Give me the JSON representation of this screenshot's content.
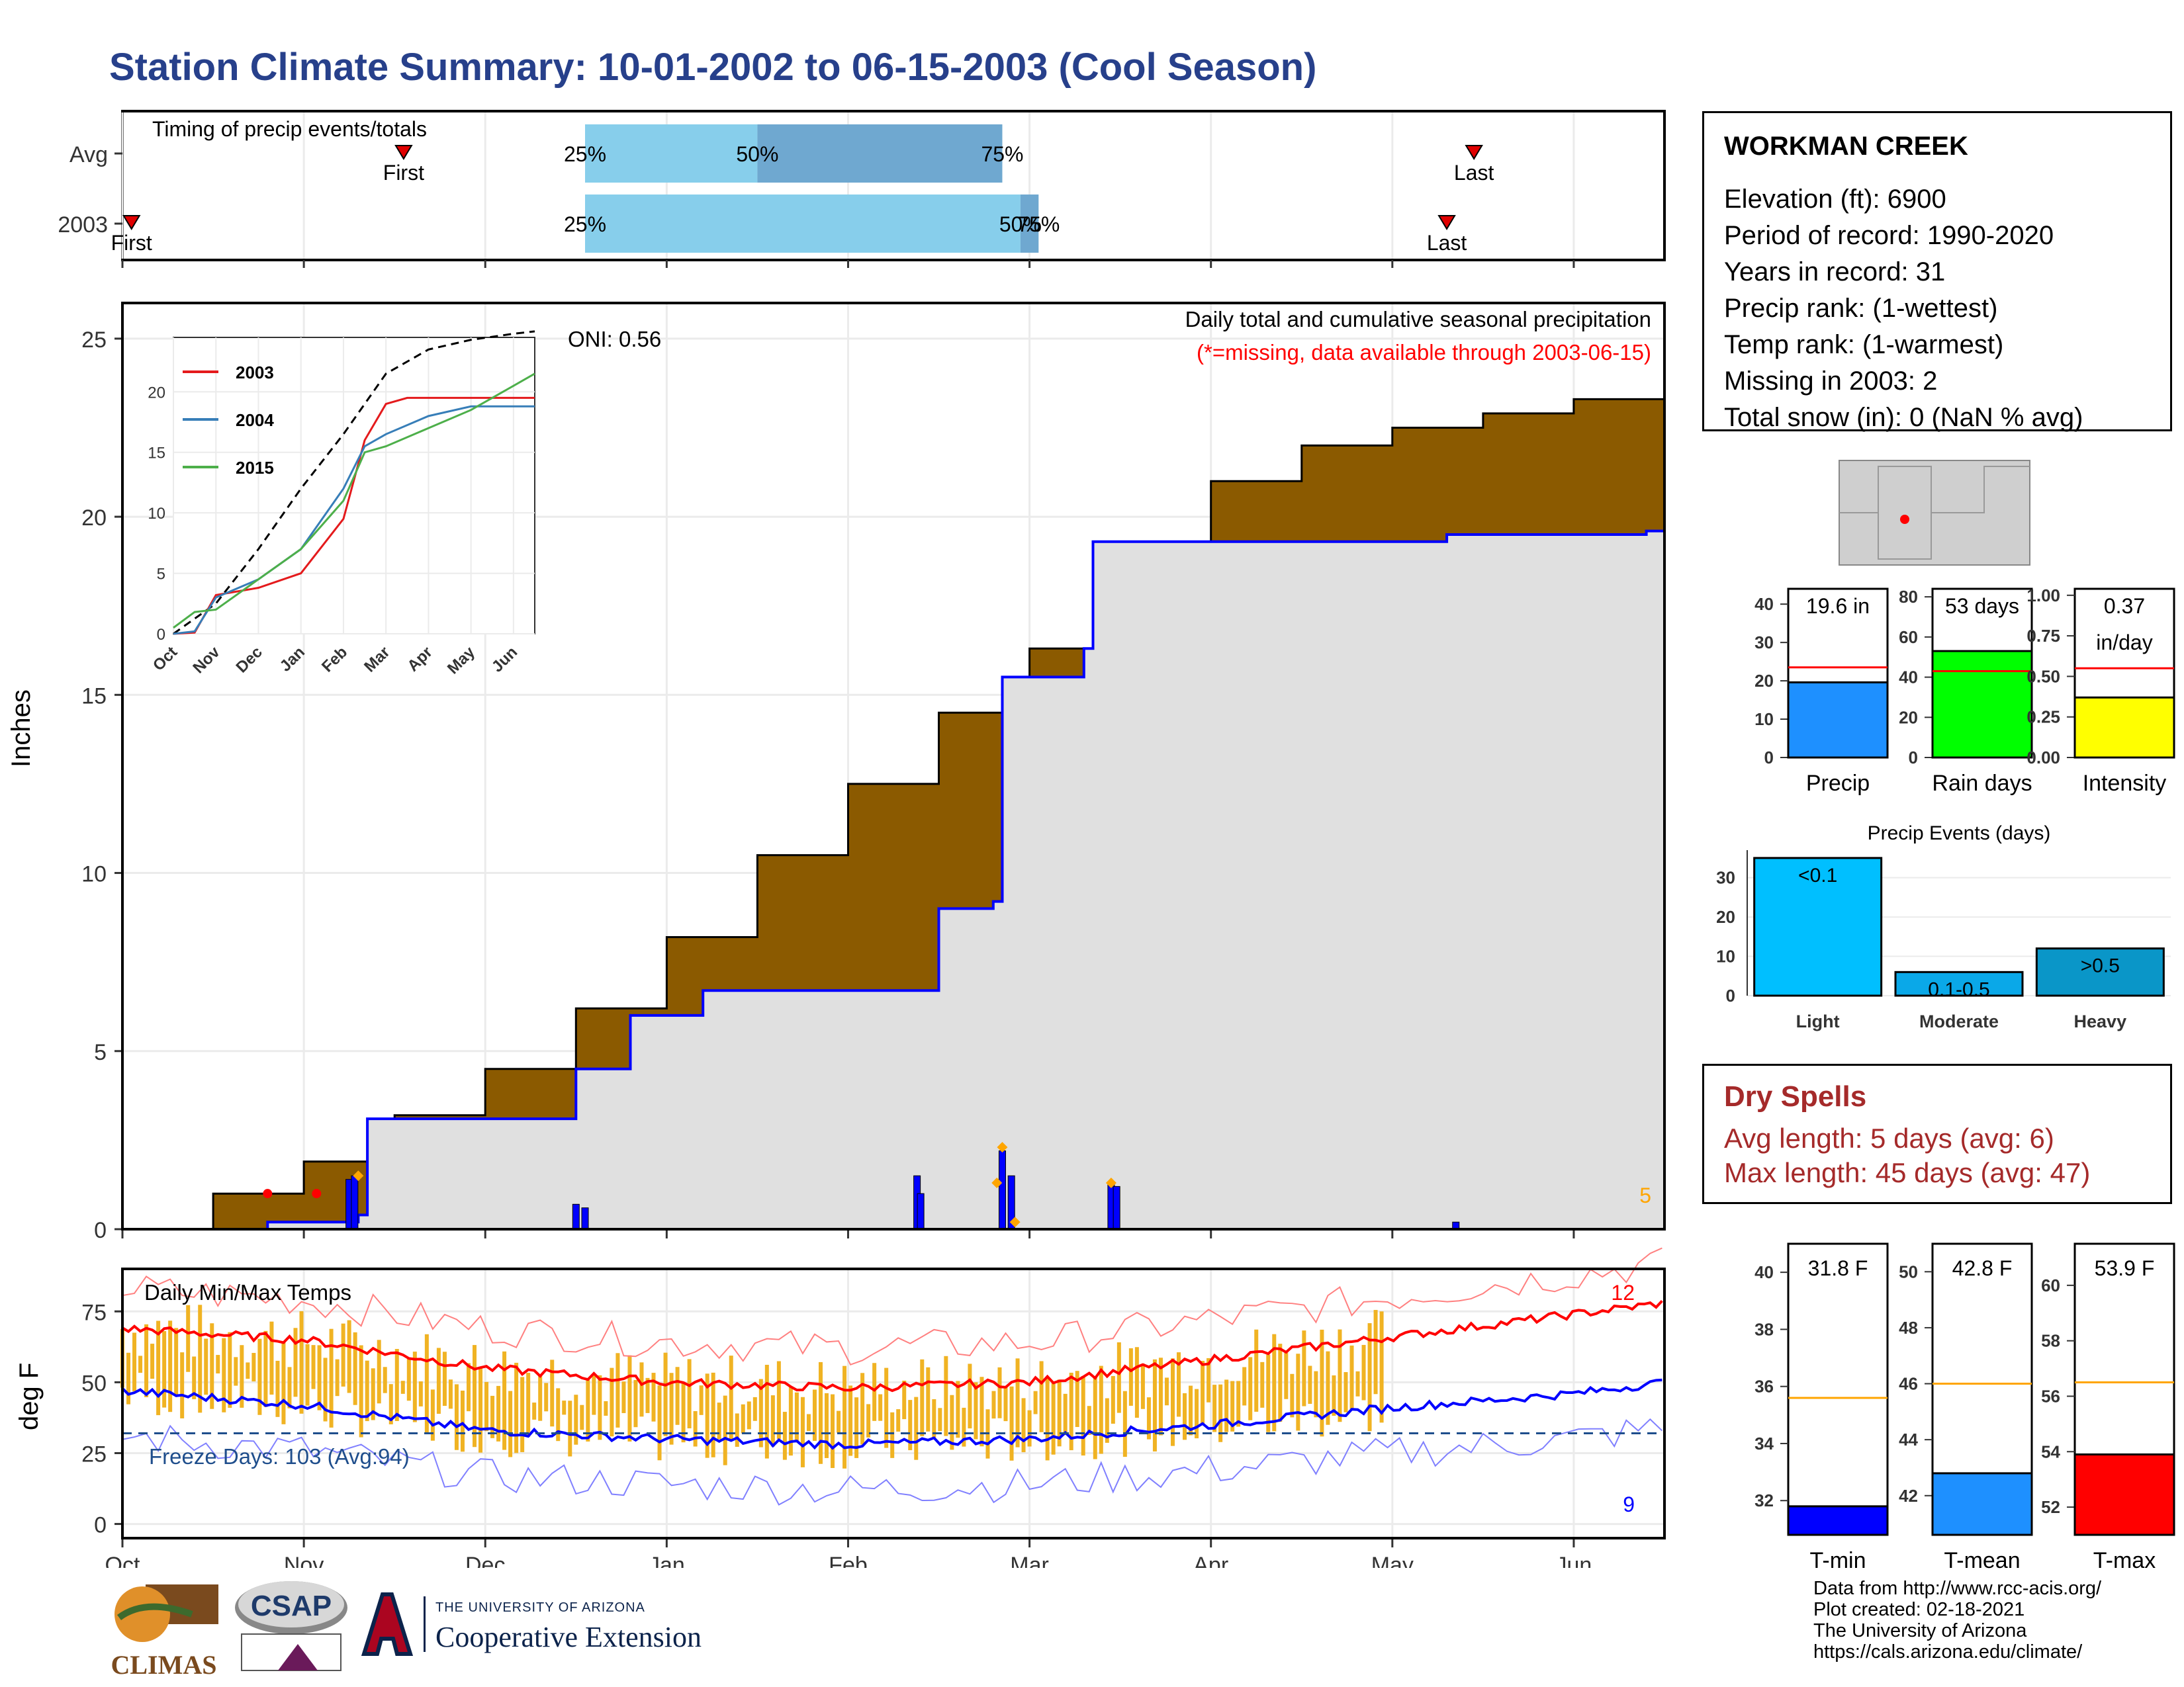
{
  "title": "Station Climate Summary: 10-01-2002 to 06-15-2003 (Cool Season)",
  "timing": {
    "label": "Timing of precip events/totals",
    "rows": [
      "Avg",
      "2003"
    ],
    "first_label": "First",
    "last_label": "Last",
    "avg_first_month": 1.55,
    "avg_last_month": 7.45,
    "yr_first_month": 0.05,
    "yr_last_month": 7.3,
    "avg_pct": {
      "p25": 2.55,
      "p50": 3.5,
      "p75": 4.85
    },
    "yr_pct": {
      "p25": 2.55,
      "p50": 4.95,
      "p75": 5.05
    },
    "pct_labels": [
      "25%",
      "50%",
      "75%"
    ]
  },
  "station": {
    "name": "WORKMAN CREEK",
    "elevation": "Elevation (ft): 6900",
    "period": "Period of record: 1990-2020",
    "years": "Years in record: 31",
    "precip_rank": "Precip rank:  (1-wettest)",
    "temp_rank": "Temp rank:  (1-warmest)",
    "missing": "Missing in 2003: 2",
    "snow": "Total snow (in): 0 (NaN % avg)"
  },
  "precip_panel": {
    "title": "Daily total and cumulative seasonal precipitation",
    "missing_note": "(*=missing, data available through 2003-06-15)",
    "oni": "ONI: 0.56",
    "ylabel": "Inches",
    "corner_count": "5",
    "avg_color": "#8b5a00",
    "obs_color": "#0000ff"
  },
  "temp_panel": {
    "title": "Daily Min/Max Temps",
    "ylabel": "deg F",
    "freeze": "Freeze Days: 103 (Avg:94)",
    "max_count": "12",
    "min_count": "9"
  },
  "months": [
    "Oct",
    "Nov",
    "Dec",
    "Jan",
    "Feb",
    "Mar",
    "Apr",
    "May",
    "Jun"
  ],
  "inset": {
    "months": [
      "Oct",
      "Nov",
      "Dec",
      "Jan",
      "Feb",
      "Mar",
      "Apr",
      "May",
      "Jun"
    ],
    "legend": [
      {
        "name": "2003",
        "color": "#e41a1c"
      },
      {
        "name": "2004",
        "color": "#377eb8"
      },
      {
        "name": "2015",
        "color": "#4daf4a"
      }
    ]
  },
  "mini_bars": [
    {
      "label": "Precip",
      "value": 19.6,
      "avg": 23.5,
      "ymax": 44,
      "ticks": [
        "0",
        "10",
        "20",
        "30",
        "40"
      ],
      "tickvals": [
        0,
        10,
        20,
        30,
        40
      ],
      "text1": "19.6 in",
      "text2": "",
      "color": "#1e90ff"
    },
    {
      "label": "Rain days",
      "value": 53,
      "avg": 43,
      "ymax": 84,
      "ticks": [
        "0",
        "20",
        "40",
        "60",
        "80"
      ],
      "tickvals": [
        0,
        20,
        40,
        60,
        80
      ],
      "text1": "53 days",
      "text2": "",
      "color": "#00ff00"
    },
    {
      "label": "Intensity",
      "value": 0.37,
      "avg": 0.55,
      "ymax": 1.04,
      "ticks": [
        "0.00",
        "0.25",
        "0.50",
        "0.75",
        "1.00"
      ],
      "tickvals": [
        0,
        0.25,
        0.5,
        0.75,
        1.0
      ],
      "text1": "0.37",
      "text2": "in/day",
      "color": "#ffff00"
    }
  ],
  "events": {
    "title": "Precip Events (days)",
    "bars": [
      {
        "label": "Light",
        "value": 35,
        "text": "<0.1",
        "color": "#00bfff"
      },
      {
        "label": "Moderate",
        "value": 6,
        "text": "0.1-0.5",
        "color": "#0aa8e8"
      },
      {
        "label": "Heavy",
        "value": 12,
        "text": ">0.5",
        "color": "#0a96c8"
      }
    ],
    "ticks": [
      "0",
      "10",
      "20",
      "30"
    ],
    "tickvals": [
      0,
      10,
      20,
      30
    ],
    "ymax": 37
  },
  "dry_spells": {
    "title": "Dry Spells",
    "avg": "Avg length: 5 days (avg: 6)",
    "max": "Max length: 45 days (avg: 47)",
    "color": "#a52a2a"
  },
  "temp_bars": [
    {
      "label": "T-min",
      "value": 31.8,
      "avg": 35.6,
      "ymin": 30.8,
      "ymax": 41,
      "ticks": [
        "32",
        "34",
        "36",
        "38",
        "40"
      ],
      "tickvals": [
        32,
        34,
        36,
        38,
        40
      ],
      "text": "31.8 F",
      "color": "#0000ff"
    },
    {
      "label": "T-mean",
      "value": 42.8,
      "avg": 46.0,
      "ymin": 40.6,
      "ymax": 51,
      "ticks": [
        "42",
        "44",
        "46",
        "48",
        "50"
      ],
      "tickvals": [
        42,
        44,
        46,
        48,
        50
      ],
      "text": "42.8 F",
      "color": "#1e90ff"
    },
    {
      "label": "T-max",
      "value": 53.9,
      "avg": 56.5,
      "ymin": 51.0,
      "ymax": 61.5,
      "ticks": [
        "52",
        "54",
        "56",
        "58",
        "60"
      ],
      "tickvals": [
        52,
        54,
        56,
        58,
        60
      ],
      "text": "53.9 F",
      "color": "#ff0000"
    }
  ],
  "footer": {
    "line1": "Data from http://www.rcc-acis.org/",
    "line2": "Plot created: 02-18-2021",
    "line3": "The University of Arizona",
    "line4": "https://cals.arizona.edu/climate/"
  },
  "logos": {
    "climas": "CLIMAS",
    "csap": "CSAP",
    "ua_small": "THE UNIVERSITY OF ARIZONA",
    "ua_big": "Cooperative Extension"
  },
  "chart_data": [
    {
      "type": "area",
      "title": "Daily total and cumulative seasonal precipitation",
      "ylabel": "Inches",
      "ylim": [
        0,
        26
      ],
      "x_unit": "months since Oct 1",
      "avg_cumulative": {
        "x": [
          0,
          0.5,
          1,
          1.5,
          2,
          2.5,
          3,
          3.5,
          4,
          4.5,
          5,
          5.5,
          6,
          6.5,
          7,
          7.5,
          8,
          8.5
        ],
        "y": [
          0,
          1.0,
          1.9,
          3.2,
          4.5,
          6.2,
          8.2,
          10.5,
          12.5,
          14.5,
          16.3,
          18.5,
          21.0,
          22.0,
          22.5,
          22.9,
          23.3,
          23.6
        ]
      },
      "obs_cumulative": {
        "x": [
          0,
          0.8,
          1.3,
          1.35,
          2.0,
          2.5,
          2.8,
          3.2,
          3.5,
          4.4,
          4.5,
          4.8,
          4.85,
          5.3,
          5.35,
          5.5,
          7.0,
          7.3,
          8.4
        ],
        "y": [
          0,
          0.2,
          0.4,
          3.1,
          3.1,
          4.5,
          6.0,
          6.7,
          6.7,
          6.7,
          9.0,
          9.2,
          15.5,
          16.3,
          19.3,
          19.3,
          19.3,
          19.5,
          19.6
        ]
      },
      "daily_bars": [
        {
          "x": 1.25,
          "y": 1.4
        },
        {
          "x": 1.28,
          "y": 1.5
        },
        {
          "x": 2.5,
          "y": 0.7
        },
        {
          "x": 2.55,
          "y": 0.6
        },
        {
          "x": 4.38,
          "y": 1.5
        },
        {
          "x": 4.4,
          "y": 1.0
        },
        {
          "x": 4.85,
          "y": 2.2
        },
        {
          "x": 4.9,
          "y": 1.5
        },
        {
          "x": 5.45,
          "y": 1.3
        },
        {
          "x": 5.48,
          "y": 1.2
        },
        {
          "x": 7.35,
          "y": 0.2
        }
      ]
    },
    {
      "type": "line",
      "title": "Daily Min/Max Temps",
      "ylabel": "deg F",
      "ylim": [
        -5,
        90
      ],
      "avg_max": {
        "x": [
          0,
          1,
          2,
          3,
          4,
          5,
          6,
          7,
          8,
          8.5
        ],
        "y": [
          69,
          65,
          55,
          50,
          48,
          50,
          58,
          66,
          74,
          78
        ]
      },
      "avg_min": {
        "x": [
          0,
          1,
          2,
          3,
          4,
          5,
          6,
          7,
          8,
          8.5
        ],
        "y": [
          47,
          42,
          33,
          30,
          28,
          30,
          35,
          41,
          46,
          50
        ]
      },
      "freeze_line": 32
    }
  ]
}
